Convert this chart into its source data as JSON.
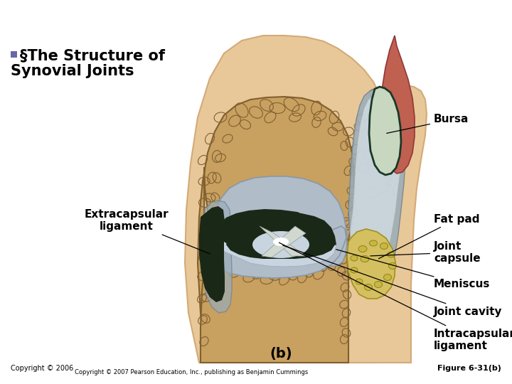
{
  "background_color": "#ffffff",
  "title_square_color": "#6666aa",
  "title_text1": "§The Structure of",
  "title_text2": "Synovial Joints",
  "title_fontsize": 15,
  "label_bursa": "Bursa",
  "label_fatpad": "Fat pad",
  "label_joint_capsule": "Joint\ncapsule",
  "label_meniscus": "Meniscus",
  "label_joint_cavity": "Joint cavity",
  "label_intracapsular": "Intracapsular\nligament",
  "label_extracapsular": "Extracapsular\nligament",
  "label_b": "(b)",
  "copyright_text": "Copyright © 2006",
  "copyright2_text": "Copyright © 2007 Pearson Education, Inc., publishing as Benjamin Cummings",
  "figure_text": "Figure 6-31(b)",
  "label_fontsize": 11,
  "small_fontsize": 7,
  "skin_outer": "#e8c898",
  "skin_inner": "#d4aa78",
  "bone_face": "#c8a060",
  "bone_edge": "#806030",
  "bone_hole": "#b08848",
  "cartilage_color": "#b0bcc8",
  "dark_meniscus": "#1a2818",
  "joint_space": "#c8d4e0",
  "capsule_color": "#9aacb8",
  "bursa_fill": "#c8d8c0",
  "bursa_edge": "#1a3828",
  "muscle_color": "#c06050",
  "fat_color": "#d4c060",
  "ligament_line": "#c0c8c0"
}
